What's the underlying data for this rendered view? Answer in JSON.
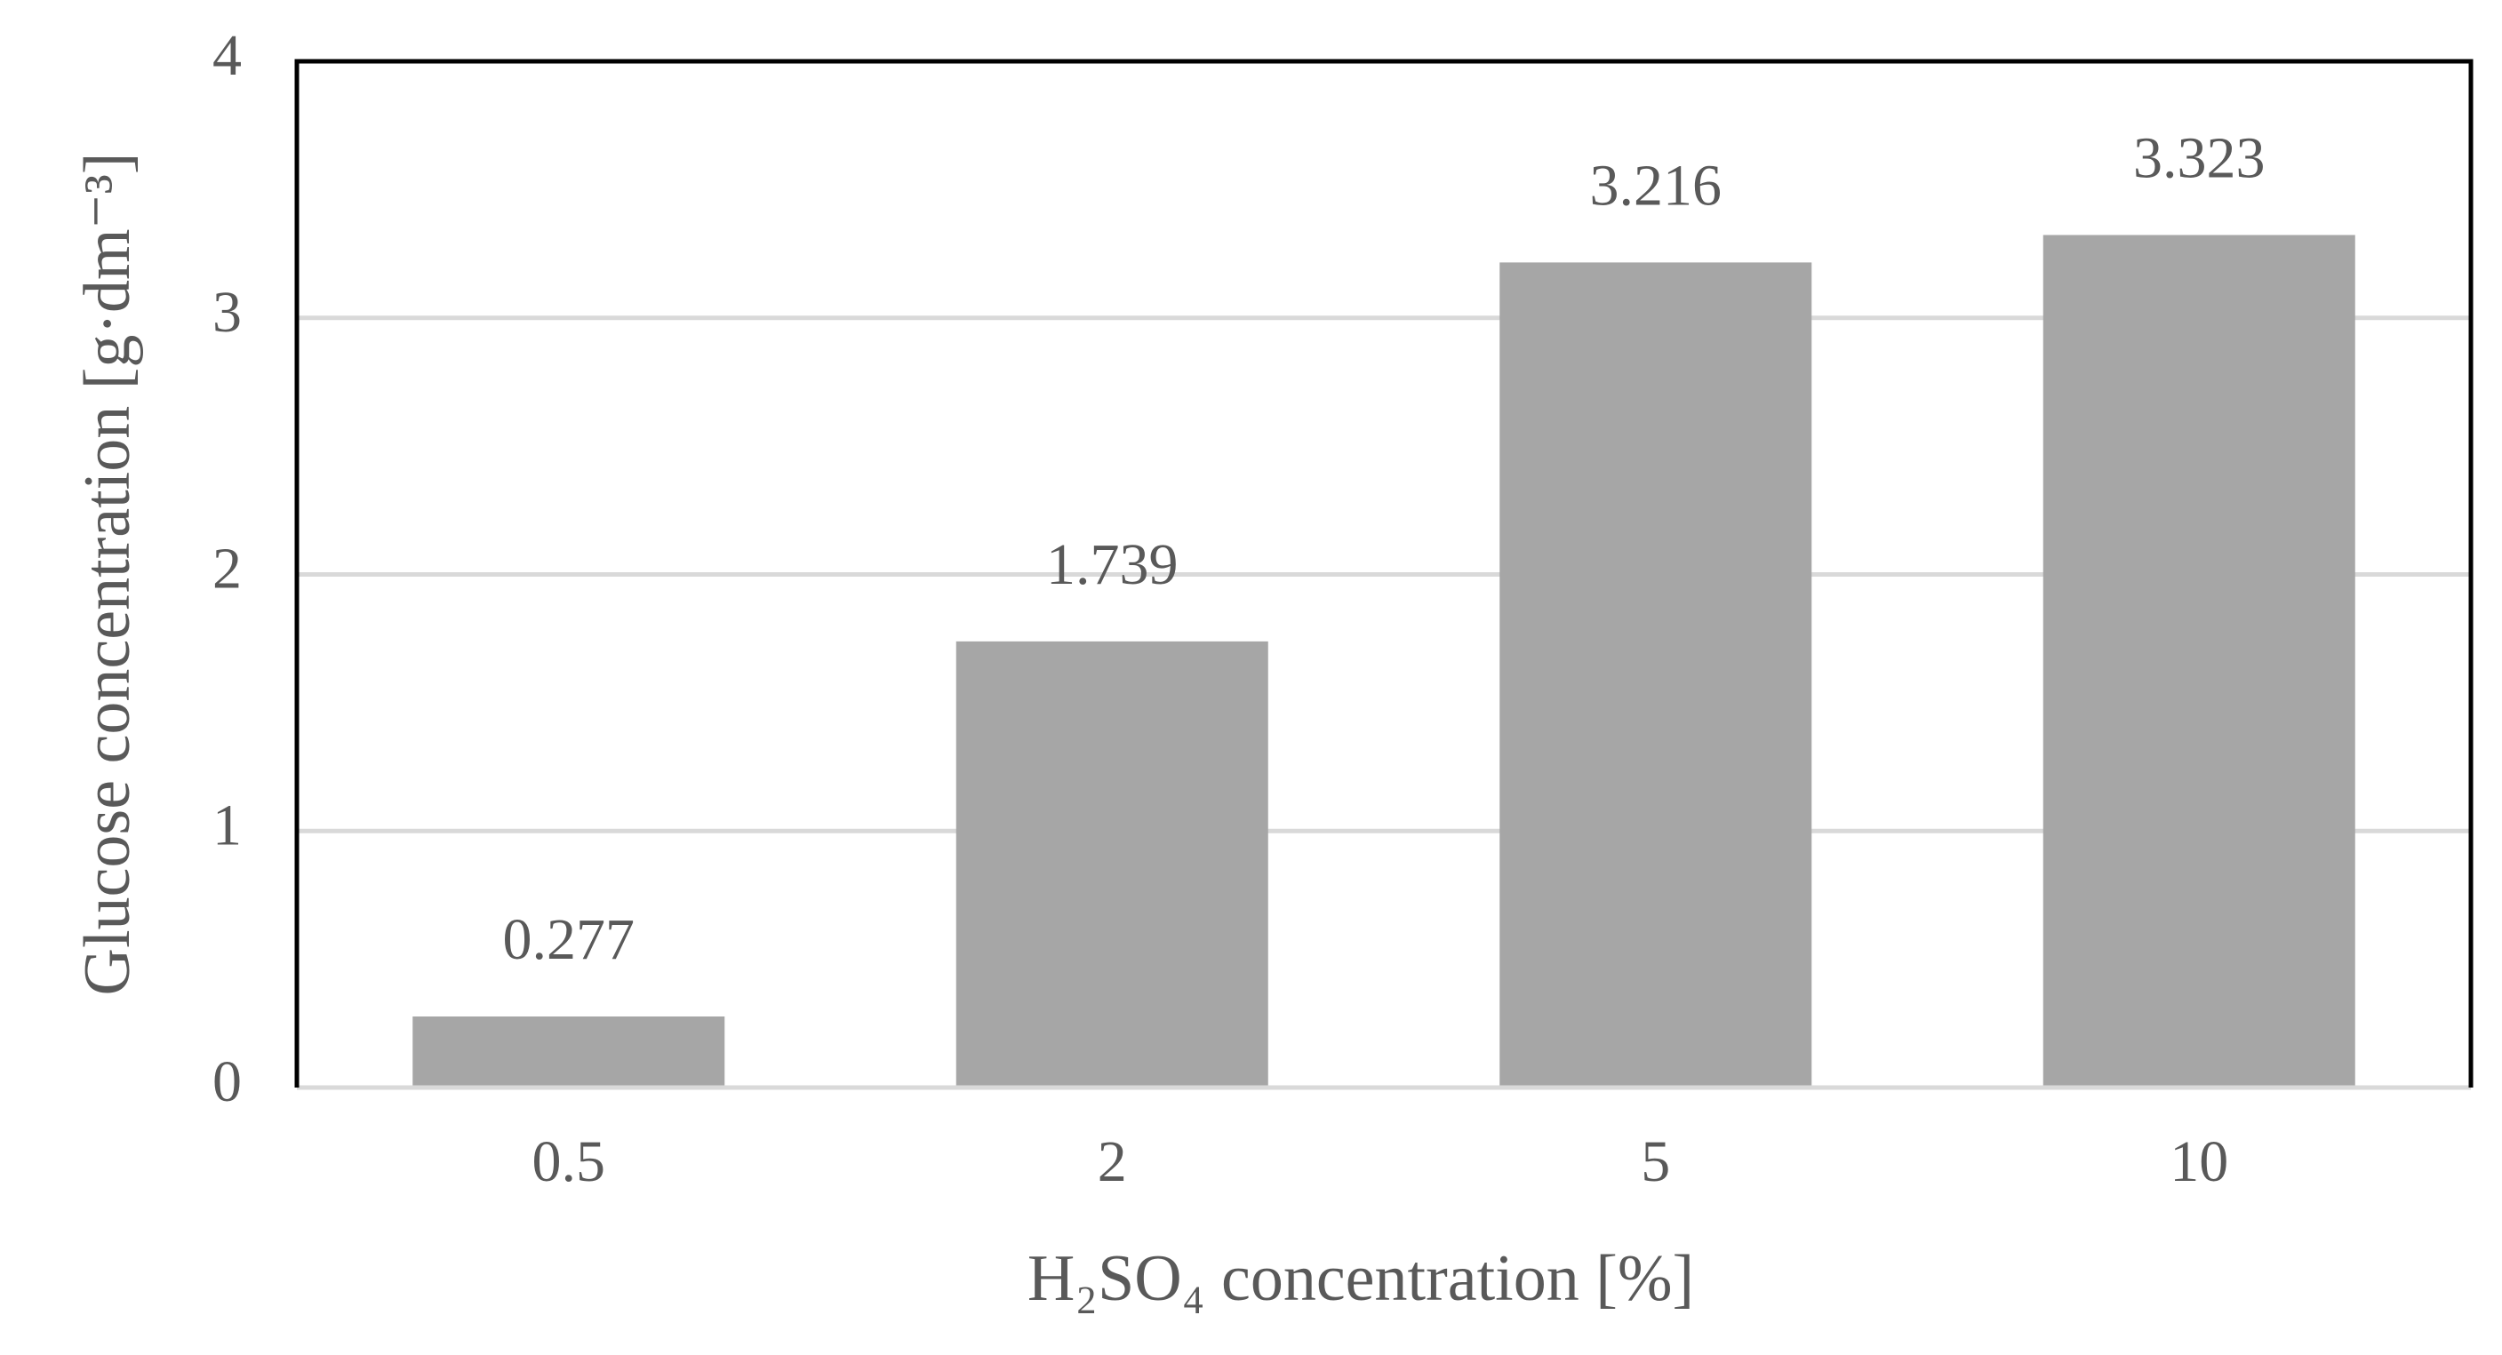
{
  "chart_data": {
    "type": "bar",
    "x_label": "H₂SO₄ concentration [%]",
    "y_label": "Glucose concentration [g·dm⁻³]",
    "categories": [
      "0.5",
      "2",
      "5",
      "10"
    ],
    "values": [
      0.277,
      1.739,
      3.216,
      3.323
    ],
    "color": "#a6a6a6",
    "ylim": [
      0,
      4
    ],
    "yticks": [
      0,
      1,
      2,
      3,
      4
    ],
    "grid": true
  }
}
